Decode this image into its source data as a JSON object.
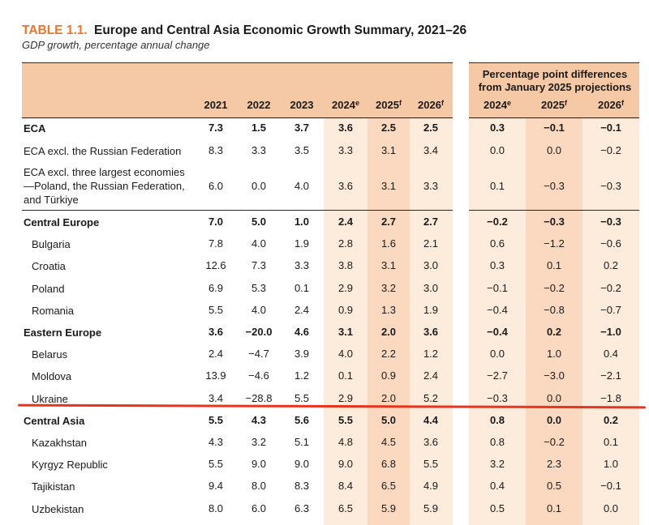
{
  "title": {
    "number": "TABLE 1.1.",
    "text": "Europe and Central Asia Economic Growth Summary, 2021–26"
  },
  "subtitle": "GDP growth, percentage annual change",
  "diff_header": "Percentage point differences from January 2025 projections",
  "columns": [
    {
      "label": "2021",
      "sup": ""
    },
    {
      "label": "2022",
      "sup": ""
    },
    {
      "label": "2023",
      "sup": ""
    },
    {
      "label": "2024",
      "sup": "e"
    },
    {
      "label": "2025",
      "sup": "f"
    },
    {
      "label": "2026",
      "sup": "f"
    },
    {
      "label": "2024",
      "sup": "e"
    },
    {
      "label": "2025",
      "sup": "f"
    },
    {
      "label": "2026",
      "sup": "f"
    }
  ],
  "rows": [
    {
      "label": "ECA",
      "bold": true,
      "indent": false,
      "values": [
        "7.3",
        "1.5",
        "3.7",
        "3.6",
        "2.5",
        "2.5",
        "0.3",
        "−0.1",
        "−0.1"
      ]
    },
    {
      "label": "ECA excl. the Russian Federation",
      "bold": false,
      "indent": false,
      "values": [
        "8.3",
        "3.3",
        "3.5",
        "3.3",
        "3.1",
        "3.4",
        "0.0",
        "0.0",
        "−0.2"
      ]
    },
    {
      "label": "ECA excl. three largest economies—Poland, the Russian Federation, and Türkiye",
      "bold": false,
      "indent": false,
      "values": [
        "6.0",
        "0.0",
        "4.0",
        "3.6",
        "3.1",
        "3.3",
        "0.1",
        "−0.3",
        "−0.3"
      ]
    },
    {
      "label": "Central Europe",
      "bold": true,
      "indent": false,
      "values": [
        "7.0",
        "5.0",
        "1.0",
        "2.4",
        "2.7",
        "2.7",
        "−0.2",
        "−0.3",
        "−0.3"
      ]
    },
    {
      "label": "Bulgaria",
      "bold": false,
      "indent": true,
      "values": [
        "7.8",
        "4.0",
        "1.9",
        "2.8",
        "1.6",
        "2.1",
        "0.6",
        "−1.2",
        "−0.6"
      ]
    },
    {
      "label": "Croatia",
      "bold": false,
      "indent": true,
      "values": [
        "12.6",
        "7.3",
        "3.3",
        "3.8",
        "3.1",
        "3.0",
        "0.3",
        "0.1",
        "0.2"
      ]
    },
    {
      "label": "Poland",
      "bold": false,
      "indent": true,
      "values": [
        "6.9",
        "5.3",
        "0.1",
        "2.9",
        "3.2",
        "3.0",
        "−0.1",
        "−0.2",
        "−0.2"
      ]
    },
    {
      "label": "Romania",
      "bold": false,
      "indent": true,
      "values": [
        "5.5",
        "4.0",
        "2.4",
        "0.9",
        "1.3",
        "1.9",
        "−0.4",
        "−0.8",
        "−0.7"
      ]
    },
    {
      "label": "Eastern Europe",
      "bold": true,
      "indent": false,
      "values": [
        "3.6",
        "−20.0",
        "4.6",
        "3.1",
        "2.0",
        "3.6",
        "−0.4",
        "0.2",
        "−1.0"
      ]
    },
    {
      "label": "Belarus",
      "bold": false,
      "indent": true,
      "values": [
        "2.4",
        "−4.7",
        "3.9",
        "4.0",
        "2.2",
        "1.2",
        "0.0",
        "1.0",
        "0.4"
      ]
    },
    {
      "label": "Moldova",
      "bold": false,
      "indent": true,
      "values": [
        "13.9",
        "−4.6",
        "1.2",
        "0.1",
        "0.9",
        "2.4",
        "−2.7",
        "−3.0",
        "−2.1"
      ]
    },
    {
      "label": "Ukraine",
      "bold": false,
      "indent": true,
      "values": [
        "3.4",
        "−28.8",
        "5.5",
        "2.9",
        "2.0",
        "5.2",
        "−0.3",
        "0.0",
        "−1.8"
      ]
    },
    {
      "label": "Central Asia",
      "bold": true,
      "indent": false,
      "values": [
        "5.5",
        "4.3",
        "5.6",
        "5.5",
        "5.0",
        "4.4",
        "0.8",
        "0.0",
        "0.2"
      ]
    },
    {
      "label": "Kazakhstan",
      "bold": false,
      "indent": true,
      "values": [
        "4.3",
        "3.2",
        "5.1",
        "4.8",
        "4.5",
        "3.6",
        "0.8",
        "−0.2",
        "0.1"
      ]
    },
    {
      "label": "Kyrgyz Republic",
      "bold": false,
      "indent": true,
      "values": [
        "5.5",
        "9.0",
        "9.0",
        "9.0",
        "6.8",
        "5.5",
        "3.2",
        "2.3",
        "1.0"
      ]
    },
    {
      "label": "Tajikistan",
      "bold": false,
      "indent": true,
      "values": [
        "9.4",
        "8.0",
        "8.3",
        "8.4",
        "6.5",
        "4.9",
        "0.4",
        "0.5",
        "−0.1"
      ]
    },
    {
      "label": "Uzbekistan",
      "bold": false,
      "indent": true,
      "values": [
        "8.0",
        "6.0",
        "6.3",
        "6.5",
        "5.9",
        "5.9",
        "0.5",
        "0.1",
        "0.0"
      ]
    }
  ],
  "colors": {
    "accent": "#e8762c",
    "header_bg": "#f6c9a6",
    "col_light": "#fdebdc",
    "col_dark": "#fad9c0",
    "annotation_line": "#e8331d"
  }
}
